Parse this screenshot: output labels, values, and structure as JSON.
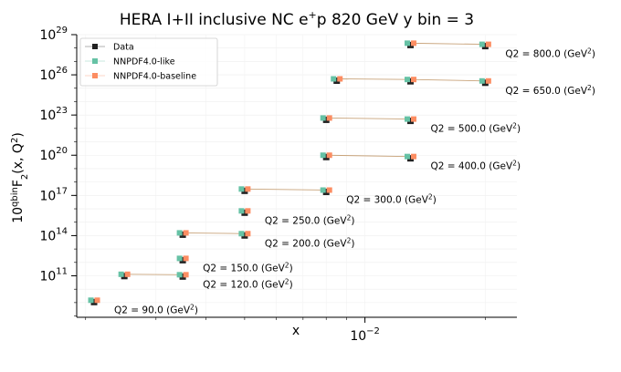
{
  "chart_data": {
    "type": "scatter",
    "title": "HERA I+II inclusive NC e⁺p 820 GeV y bin = 3",
    "xlabel": "x",
    "ylabel": "10^{qbin}F₂(x, Q²)",
    "x_scale": "log",
    "y_scale": "log",
    "xlim": [
      0.0019,
      0.024
    ],
    "ylim": [
      80000000.0,
      1e+29
    ],
    "x_tick_labels": [
      {
        "value": 0.01,
        "label": "10⁻²"
      }
    ],
    "y_tick_labels": [
      {
        "value": 100000000000.0,
        "label": "10¹¹"
      },
      {
        "value": 100000000000000.0,
        "label": "10¹⁴"
      },
      {
        "value": 1e+17,
        "label": "10¹⁷"
      },
      {
        "value": 1e+20,
        "label": "10²⁰"
      },
      {
        "value": 1e+23,
        "label": "10²³"
      },
      {
        "value": 1e+26,
        "label": "10²⁶"
      },
      {
        "value": 1e+29,
        "label": "10²⁹"
      }
    ],
    "grid": true,
    "legend": {
      "placement": "top-left",
      "entries": [
        {
          "name": "Data",
          "color": "#222222"
        },
        {
          "name": "NNPDF4.0-like",
          "color": "#66c2a5"
        },
        {
          "name": "NNPDF4.0-baseline",
          "color": "#fc8d62"
        }
      ]
    },
    "q2_bins": [
      {
        "label": "Q2 = 90.0 (GeV²)",
        "x": [
          0.0021
        ],
        "y": [
          1500000000.0
        ]
      },
      {
        "label": "Q2 = 120.0 (GeV²)",
        "x": [
          0.0025,
          0.0035
        ],
        "y": [
          130000000000.0,
          120000000000.0
        ]
      },
      {
        "label": "Q2 = 150.0 (GeV²)",
        "x": [
          0.0035
        ],
        "y": [
          2000000000000.0
        ]
      },
      {
        "label": "Q2 = 200.0 (GeV²)",
        "x": [
          0.0035,
          0.005
        ],
        "y": [
          160000000000000.0,
          140000000000000.0
        ]
      },
      {
        "label": "Q2 = 250.0 (GeV²)",
        "x": [
          0.005
        ],
        "y": [
          7000000000000000.0
        ]
      },
      {
        "label": "Q2 = 300.0 (GeV²)",
        "x": [
          0.005,
          0.008
        ],
        "y": [
          3e+17,
          2.5e+17
        ]
      },
      {
        "label": "Q2 = 400.0 (GeV²)",
        "x": [
          0.008,
          0.013
        ],
        "y": [
          1e+20,
          8e+19
        ]
      },
      {
        "label": "Q2 = 500.0 (GeV²)",
        "x": [
          0.008,
          0.013
        ],
        "y": [
          6e+22,
          5e+22
        ]
      },
      {
        "label": "Q2 = 650.0 (GeV²)",
        "x": [
          0.0085,
          0.013,
          0.02
        ],
        "y": [
          5e+25,
          4.5e+25,
          3.5e+25
        ]
      },
      {
        "label": "Q2 = 800.0 (GeV²)",
        "x": [
          0.013,
          0.02
        ],
        "y": [
          2.3e+28,
          1.9e+28
        ]
      }
    ],
    "series_colors": {
      "data": "#222222",
      "like": "#66c2a5",
      "baseline": "#fc8d62",
      "line": "#c8a37a"
    }
  }
}
